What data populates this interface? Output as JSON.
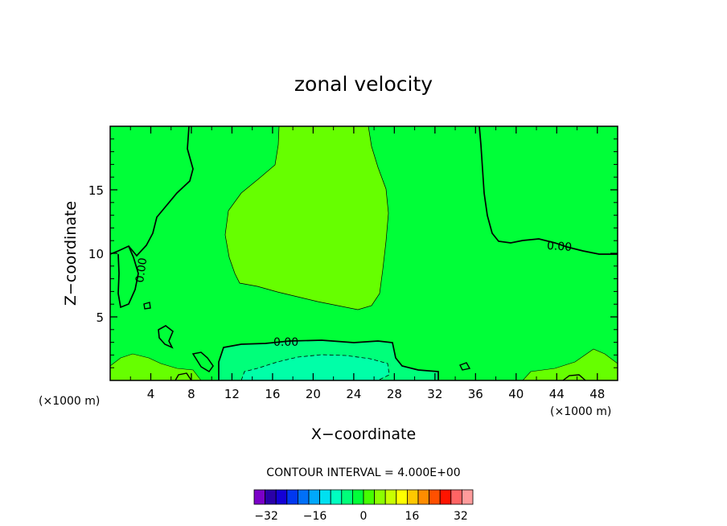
{
  "chart_data": {
    "type": "contour",
    "title": "zonal velocity",
    "xlabel": "X−coordinate",
    "ylabel": "Z−coordinate",
    "x_unit_label": "(×1000 m)",
    "z_unit_label": "(×1000 m)",
    "xlim": [
      0,
      50
    ],
    "zlim": [
      0,
      20
    ],
    "x_ticks": [
      4,
      8,
      12,
      16,
      20,
      24,
      28,
      32,
      36,
      40,
      44,
      48
    ],
    "x_tick_labels": [
      "4",
      "8",
      "12",
      "16",
      "20",
      "24",
      "28",
      "32",
      "36",
      "40",
      "44",
      "48"
    ],
    "z_ticks": [
      5,
      10,
      15
    ],
    "z_tick_labels": [
      "5",
      "10",
      "15"
    ],
    "contour_interval_text": "CONTOUR INTERVAL = 4.000E+00",
    "contour_labels": [
      "0.00",
      "0.00",
      "0.00"
    ],
    "colorbar": {
      "min": -36,
      "max": 36,
      "step": 4,
      "tick_values": [
        -32,
        -16,
        0,
        16,
        32
      ],
      "tick_labels": [
        "−32",
        "−16",
        "0",
        "16",
        "32"
      ],
      "colors": [
        "#7b00c8",
        "#2a00a8",
        "#1400d6",
        "#0038f0",
        "#0070f8",
        "#00a8fc",
        "#00e0f0",
        "#00ffc0",
        "#00ff7a",
        "#00ff38",
        "#46ff00",
        "#8cff00",
        "#c8ff00",
        "#ffff00",
        "#ffc800",
        "#ff8c00",
        "#ff5000",
        "#ff1400",
        "#ff6464",
        "#ff9c9c"
      ]
    },
    "regions": [
      {
        "name": "background",
        "value_range": [
          0,
          4
        ],
        "color": "#00ff38"
      },
      {
        "name": "central-positive-core",
        "value_range": [
          4,
          8
        ],
        "color": "#66ff00"
      },
      {
        "name": "surface-negative-layer",
        "value_range": [
          -4,
          0
        ],
        "color": "#00ff7a"
      },
      {
        "name": "surface-negative-core",
        "value_range": [
          -8,
          -4
        ],
        "color": "#00ffa8"
      }
    ]
  }
}
